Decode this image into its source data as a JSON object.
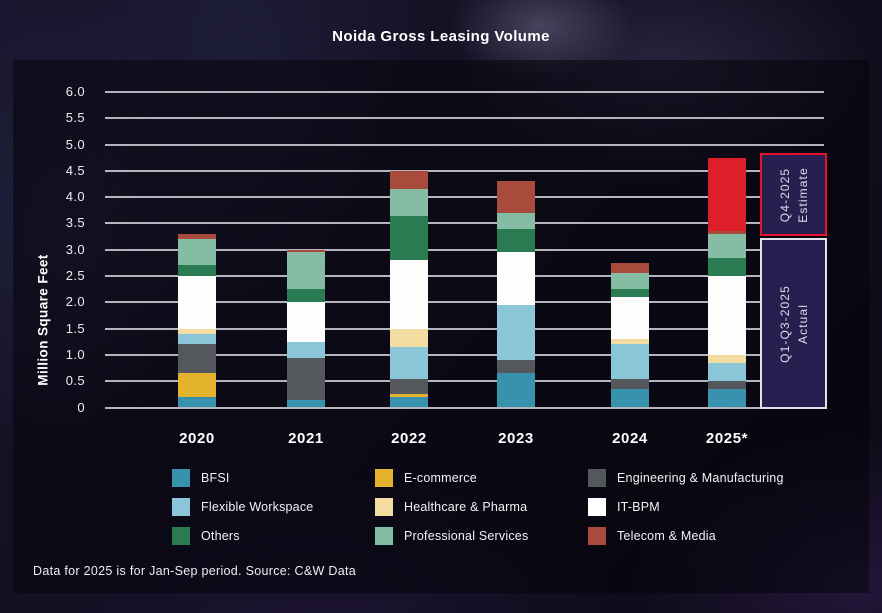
{
  "title": "Noida Gross Leasing Volume",
  "y_axis_label": "Million Square Feet",
  "footer": {
    "note": "Data for 2025 is for Jan-Sep period. Source: C&W Data"
  },
  "annotations": {
    "box_fill": "#262051",
    "estimate": {
      "line1": "Q4-2025",
      "line2": "Estimate",
      "border_color": "#e4122b"
    },
    "actual": {
      "line1": "Q1-Q3-2025",
      "line2": "Actual",
      "border_color": "#e2e2e8"
    }
  },
  "chart_data": {
    "type": "bar",
    "stacked": true,
    "title": "Noida Gross Leasing Volume",
    "xlabel": "",
    "ylabel": "Million Square Feet",
    "ylim": [
      0,
      6.0
    ],
    "grid": true,
    "legend_position": "bottom",
    "yticks": [
      "6.0",
      "5.5",
      "5.0",
      "4.5",
      "4.0",
      "3.5",
      "3.0",
      "2.5",
      "2.0",
      "1.5",
      "1.0",
      "0.5",
      "0"
    ],
    "categories": [
      "2020",
      "2021",
      "2022",
      "2023",
      "2024",
      "2025*"
    ],
    "series": [
      {
        "name": "BFSI",
        "color": "#3892ad",
        "values": [
          0.2,
          0.15,
          0.2,
          0.65,
          0.35,
          0.35
        ]
      },
      {
        "name": "E-commerce",
        "color": "#e3b32d",
        "values": [
          0.45,
          0.0,
          0.05,
          0.0,
          0.0,
          0.0
        ]
      },
      {
        "name": "Engineering & Manufacturing",
        "color": "#54585c",
        "values": [
          0.55,
          0.8,
          0.3,
          0.25,
          0.2,
          0.15
        ]
      },
      {
        "name": "Flexible Workspace",
        "color": "#8bc6d8",
        "values": [
          0.2,
          0.3,
          0.6,
          1.05,
          0.65,
          0.35
        ]
      },
      {
        "name": "Healthcare & Pharma",
        "color": "#f2dc9f",
        "values": [
          0.1,
          0.0,
          0.35,
          0.0,
          0.1,
          0.15
        ]
      },
      {
        "name": "IT-BPM",
        "color": "#fdfdfd",
        "values": [
          1.0,
          0.75,
          1.3,
          1.0,
          0.8,
          1.5
        ]
      },
      {
        "name": "Others",
        "color": "#2b7b52",
        "values": [
          0.2,
          0.25,
          0.85,
          0.45,
          0.15,
          0.35
        ]
      },
      {
        "name": "Professional Services",
        "color": "#85bca4",
        "values": [
          0.5,
          0.7,
          0.5,
          0.3,
          0.3,
          0.45
        ]
      },
      {
        "name": "Telecom & Media",
        "color": "#a84b3d",
        "values": [
          0.1,
          0.05,
          0.35,
          0.6,
          0.2,
          0.05
        ]
      },
      {
        "name": "Q4-2025 Estimate",
        "color": "#dc1f28",
        "values": [
          0.0,
          0.0,
          0.0,
          0.0,
          0.0,
          1.4
        ]
      }
    ],
    "totals": [
      3.3,
      3.0,
      4.5,
      4.3,
      2.75,
      4.75
    ]
  },
  "legend": {
    "items": [
      {
        "label": "BFSI",
        "color": "#3892ad"
      },
      {
        "label": "Flexible Workspace",
        "color": "#8bc6d8"
      },
      {
        "label": "Others",
        "color": "#2b7b52"
      },
      {
        "label": "E-commerce",
        "color": "#e3b32d"
      },
      {
        "label": "Healthcare & Pharma",
        "color": "#f2dc9f"
      },
      {
        "label": "Professional Services",
        "color": "#85bca4"
      },
      {
        "label": "Engineering & Manufacturing",
        "color": "#54585c"
      },
      {
        "label": "IT-BPM",
        "color": "#ffffff"
      },
      {
        "label": "Telecom & Media",
        "color": "#a84b3d"
      }
    ]
  }
}
